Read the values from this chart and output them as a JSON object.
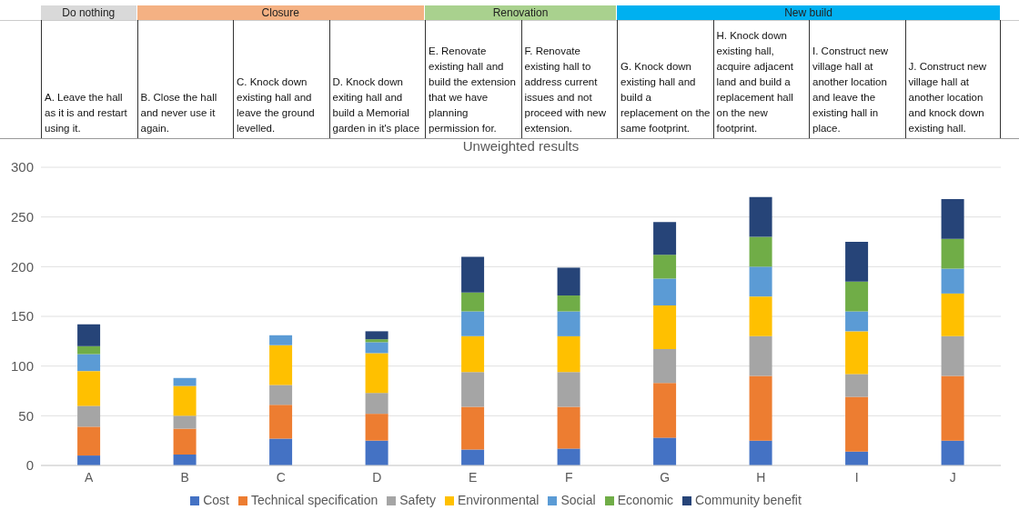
{
  "chart_data": {
    "type": "bar",
    "title": "Unweighted results",
    "stacked": true,
    "categories": [
      "A",
      "B",
      "C",
      "D",
      "E",
      "F",
      "G",
      "H",
      "I",
      "J"
    ],
    "series": [
      {
        "name": "Cost",
        "color": "#4472c4",
        "values": [
          10,
          11,
          27,
          25,
          16,
          17,
          28,
          25,
          14,
          25
        ]
      },
      {
        "name": "Technical specification",
        "color": "#ed7d31",
        "values": [
          29,
          26,
          34,
          27,
          43,
          42,
          55,
          65,
          55,
          65
        ]
      },
      {
        "name": "Safety",
        "color": "#a5a5a5",
        "values": [
          21,
          13,
          20,
          21,
          35,
          35,
          34,
          40,
          23,
          40
        ]
      },
      {
        "name": "Environmental",
        "color": "#ffc000",
        "values": [
          35,
          30,
          40,
          40,
          36,
          36,
          44,
          40,
          43,
          43
        ]
      },
      {
        "name": "Social",
        "color": "#5b9bd5",
        "values": [
          17,
          8,
          10,
          11,
          25,
          25,
          27,
          30,
          20,
          25
        ]
      },
      {
        "name": "Economic",
        "color": "#70ad47",
        "values": [
          8,
          null,
          null,
          3,
          19,
          16,
          24,
          30,
          30,
          30
        ]
      },
      {
        "name": "Community benefit",
        "color": "#264478",
        "values": [
          22,
          null,
          null,
          8,
          36,
          28,
          33,
          40,
          40,
          40
        ]
      }
    ],
    "ylim": [
      0,
      300
    ],
    "yticks": [
      0,
      50,
      100,
      150,
      200,
      250,
      300
    ],
    "grid": "y",
    "legend": "bottom",
    "annotations": [
      "Do nothing",
      "Closure",
      "Renovation",
      "New build",
      "A. Leave the hall as it is and restart using it.",
      "B. Close the hall and never use it again.",
      "C. Knock down existing hall and leave the ground levelled.",
      "D. Knock down exiting hall and build a Memorial garden in it's place",
      "E. Renovate existing hall and build the extension that we have planning permission for.",
      "F. Renovate existing hall to address current issues and not proceed with new extension.",
      "G. Knock down existing hall and build a replacement on the same footprint.",
      "H. Knock down existing hall, acquire adjacent land and build a replacement hall on the new footprint.",
      "I. Construct new village hall at another location and leave the existing hall in place.",
      "J. Construct new village hall at another location and knock down existing hall."
    ]
  }
}
